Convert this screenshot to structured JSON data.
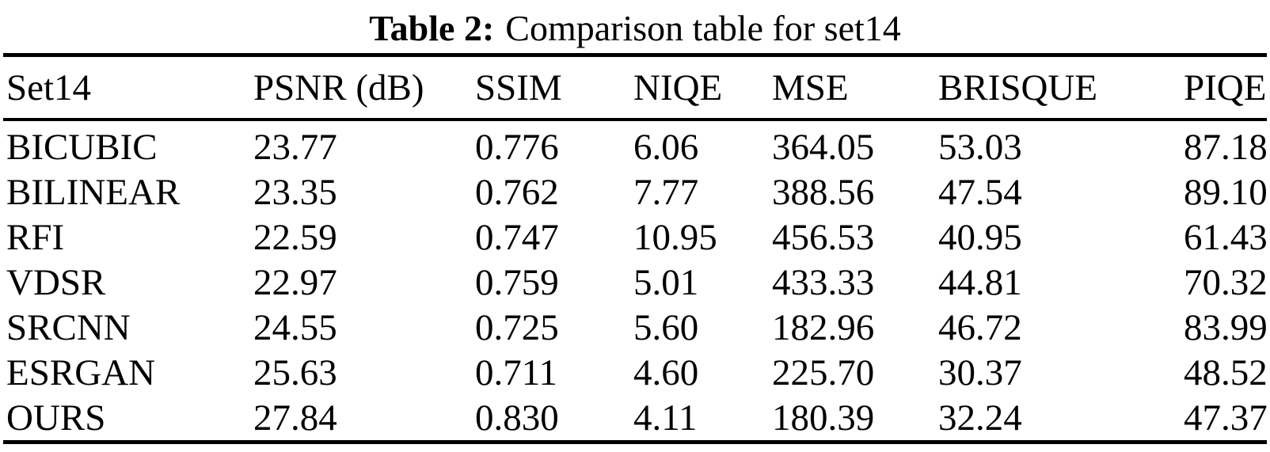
{
  "caption": {
    "label": "Table 2:",
    "text": "Comparison table for set14"
  },
  "table": {
    "columns": [
      "Set14",
      "PSNR (dB)",
      "SSIM",
      "NIQE",
      "MSE",
      "BRISQUE",
      "PIQE"
    ],
    "rows": [
      {
        "method": "BICUBIC",
        "values": [
          "23.77",
          "0.776",
          "6.06",
          "364.05",
          "53.03",
          "87.18"
        ]
      },
      {
        "method": "BILINEAR",
        "values": [
          "23.35",
          "0.762",
          "7.77",
          "388.56",
          "47.54",
          "89.10"
        ]
      },
      {
        "method": "RFI",
        "values": [
          "22.59",
          "0.747",
          "10.95",
          "456.53",
          "40.95",
          "61.43"
        ]
      },
      {
        "method": "VDSR",
        "values": [
          "22.97",
          "0.759",
          "5.01",
          "433.33",
          "44.81",
          "70.32"
        ]
      },
      {
        "method": "SRCNN",
        "values": [
          "24.55",
          "0.725",
          "5.60",
          "182.96",
          "46.72",
          "83.99"
        ]
      },
      {
        "method": "ESRGAN",
        "values": [
          "25.63",
          "0.711",
          "4.60",
          "225.70",
          "30.37",
          "48.52"
        ]
      },
      {
        "method": "OURS",
        "values": [
          "27.84",
          "0.830",
          "4.11",
          "180.39",
          "32.24",
          "47.37"
        ]
      }
    ]
  },
  "chart_data": {
    "type": "table",
    "title": "Table 2: Comparison table for set14",
    "columns": [
      "Set14",
      "PSNR (dB)",
      "SSIM",
      "NIQE",
      "MSE",
      "BRISQUE",
      "PIQE"
    ],
    "series": [
      {
        "name": "BICUBIC",
        "values": [
          23.77,
          0.776,
          6.06,
          364.05,
          53.03,
          87.18
        ]
      },
      {
        "name": "BILINEAR",
        "values": [
          23.35,
          0.762,
          7.77,
          388.56,
          47.54,
          89.1
        ]
      },
      {
        "name": "RFI",
        "values": [
          22.59,
          0.747,
          10.95,
          456.53,
          40.95,
          61.43
        ]
      },
      {
        "name": "VDSR",
        "values": [
          22.97,
          0.759,
          5.01,
          433.33,
          44.81,
          70.32
        ]
      },
      {
        "name": "SRCNN",
        "values": [
          24.55,
          0.725,
          5.6,
          182.96,
          46.72,
          83.99
        ]
      },
      {
        "name": "ESRGAN",
        "values": [
          25.63,
          0.711,
          4.6,
          225.7,
          30.37,
          48.52
        ]
      },
      {
        "name": "OURS",
        "values": [
          27.84,
          0.83,
          4.11,
          180.39,
          32.24,
          47.37
        ]
      }
    ],
    "colors": {
      "text": "#000000",
      "background": "#ffffff",
      "rule": "#000000"
    }
  }
}
